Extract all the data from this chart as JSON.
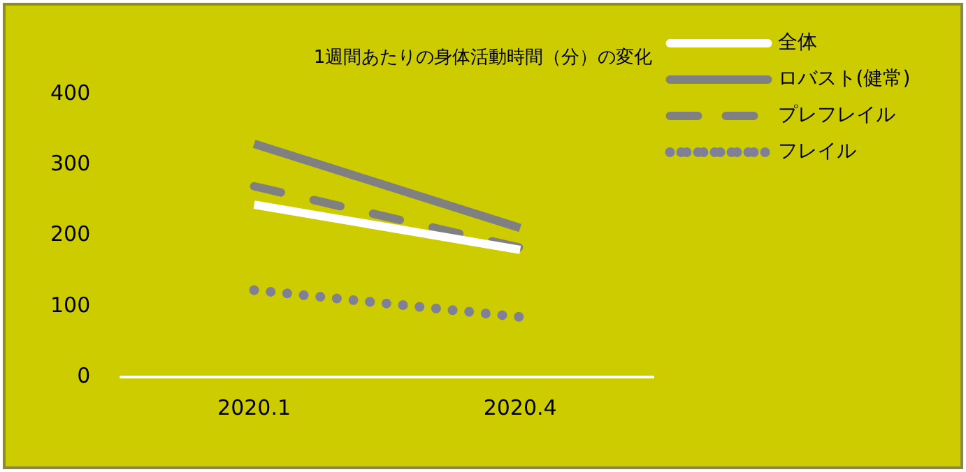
{
  "chart_data": {
    "type": "line",
    "title": "1週間あたりの身体活動時間（分）の変化",
    "categories": [
      "2020.1",
      "2020.4"
    ],
    "series": [
      {
        "name": "全体",
        "color": "#ffffff",
        "values": [
          244,
          180
        ],
        "line_style": "solid"
      },
      {
        "name": "ロバスト(健常)",
        "color": "#808080",
        "values": [
          330,
          211
        ],
        "line_style": "solid"
      },
      {
        "name": "プレフレイル",
        "color": "#808080",
        "values": [
          270,
          183
        ],
        "line_style": "dashed"
      },
      {
        "name": "フレイル",
        "color": "#7f7f96",
        "values": [
          123,
          85
        ],
        "line_style": "dotted"
      }
    ],
    "ylim": [
      0,
      400
    ],
    "yticks": [
      0,
      100,
      200,
      300,
      400
    ],
    "grid": false,
    "legend": "right",
    "marker": "none"
  }
}
